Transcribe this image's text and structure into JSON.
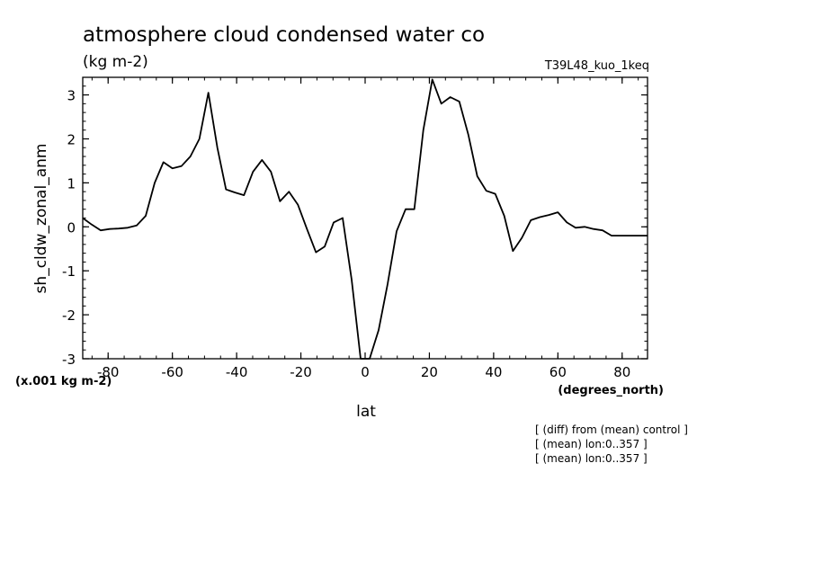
{
  "chart_data": {
    "type": "line",
    "title": "atmosphere cloud condensed water co",
    "subtitle": "(kg m-2)",
    "run_label": "T39L48_kuo_1keq",
    "ylabel": "sh_cldw_zonal_anm",
    "xlabel": "lat",
    "x_units": "(degrees_north)",
    "y_scale_note": "(x.001 kg m-2)",
    "xlim": [
      -87.9,
      87.9
    ],
    "ylim": [
      -3,
      3.4
    ],
    "x_ticks": [
      -80,
      -60,
      -40,
      -20,
      0,
      20,
      40,
      60,
      80
    ],
    "y_ticks": [
      -3,
      -2,
      -1,
      0,
      1,
      2,
      3
    ],
    "x_tick_labels": [
      "-80",
      "-60",
      "-40",
      "-20",
      "0",
      "20",
      "40",
      "60",
      "80"
    ],
    "y_tick_labels": [
      "-3",
      "-2",
      "-1",
      "0",
      "1",
      "2",
      "3"
    ],
    "grid": false,
    "line_color": "#000000",
    "x": [
      -87.9,
      -85.1,
      -82.3,
      -79.5,
      -76.7,
      -73.9,
      -71.1,
      -68.3,
      -65.5,
      -62.8,
      -60.0,
      -57.2,
      -54.4,
      -51.6,
      -48.8,
      -46.0,
      -43.3,
      -40.5,
      -37.7,
      -34.9,
      -32.1,
      -29.3,
      -26.5,
      -23.7,
      -20.9,
      -18.1,
      -15.3,
      -12.6,
      -9.8,
      -7.0,
      -4.2,
      -1.4,
      1.4,
      4.2,
      7.0,
      9.8,
      12.6,
      15.3,
      18.1,
      20.9,
      23.7,
      26.5,
      29.3,
      32.1,
      34.9,
      37.7,
      40.5,
      43.3,
      46.0,
      48.8,
      51.6,
      54.4,
      57.2,
      60.0,
      62.8,
      65.5,
      68.3,
      71.1,
      73.9,
      76.7,
      79.5,
      82.3,
      85.1,
      87.9
    ],
    "series": [
      {
        "values": [
          0.2,
          0.05,
          -0.08,
          -0.05,
          -0.04,
          -0.02,
          0.03,
          0.25,
          1.0,
          1.47,
          1.33,
          1.38,
          1.6,
          2.0,
          3.05,
          1.8,
          0.85,
          0.78,
          0.72,
          1.25,
          1.52,
          1.25,
          0.58,
          0.8,
          0.5,
          -0.05,
          -0.58,
          -0.45,
          0.1,
          0.2,
          -1.2,
          -3.0,
          -3.0,
          -2.35,
          -1.3,
          -0.1,
          0.4,
          0.4,
          2.2,
          3.35,
          2.8,
          2.95,
          2.85,
          2.1,
          1.15,
          0.82,
          0.75,
          0.25,
          -0.55,
          -0.25,
          0.15,
          0.22,
          0.27,
          0.33,
          0.1,
          -0.02,
          0.0,
          -0.05,
          -0.08,
          -0.2,
          -0.2,
          -0.2,
          -0.2,
          -0.2
        ]
      }
    ]
  },
  "annotations": [
    "[ (diff) from (mean) control ]",
    "[ (mean) lon:0..357 ]",
    "[ (mean) lon:0..357 ]"
  ]
}
